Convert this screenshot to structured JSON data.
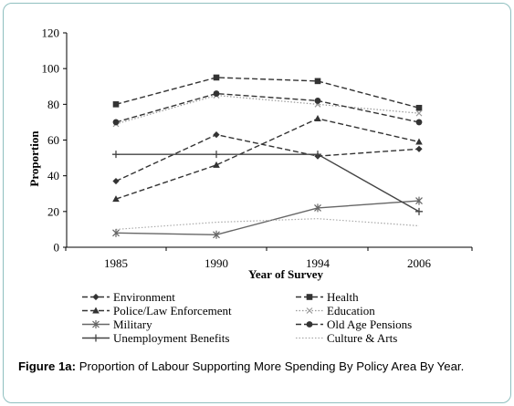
{
  "chart_data": {
    "type": "line",
    "title": "",
    "xlabel": "Year of Survey",
    "ylabel": "Proportion",
    "categories": [
      "1985",
      "1990",
      "1994",
      "2006"
    ],
    "ylim": [
      0,
      120
    ],
    "yticks": [
      "0",
      "20",
      "40",
      "60",
      "80",
      "100",
      "120"
    ],
    "grid": false,
    "legend_position": "bottom",
    "series": [
      {
        "name": "Environment",
        "values": [
          37,
          63,
          51,
          55
        ],
        "color": "#333333",
        "dash": "dashed",
        "marker": "diamond"
      },
      {
        "name": "Health",
        "values": [
          80,
          95,
          93,
          78
        ],
        "color": "#333333",
        "dash": "dashed",
        "marker": "square"
      },
      {
        "name": "Police/Law Enforcement",
        "values": [
          27,
          46,
          72,
          59
        ],
        "color": "#333333",
        "dash": "dashed",
        "marker": "triangle"
      },
      {
        "name": "Education",
        "values": [
          69,
          85,
          80,
          75
        ],
        "color": "#999999",
        "dash": "dotted",
        "marker": "x"
      },
      {
        "name": "Military",
        "values": [
          8,
          7,
          22,
          26
        ],
        "color": "#666666",
        "dash": "solid",
        "marker": "star"
      },
      {
        "name": "Old Age Pensions",
        "values": [
          70,
          86,
          82,
          70
        ],
        "color": "#333333",
        "dash": "dashed",
        "marker": "circle"
      },
      {
        "name": "Unemployment Benefits",
        "values": [
          52,
          52,
          52,
          20
        ],
        "color": "#444444",
        "dash": "solid",
        "marker": "plus"
      },
      {
        "name": "Culture & Arts",
        "values": [
          10,
          14,
          16,
          12
        ],
        "color": "#aaaaaa",
        "dash": "dotted",
        "marker": "none"
      }
    ]
  },
  "caption": {
    "label": "Figure 1a:",
    "text": "Proportion of Labour Supporting More Spending By Policy Area By Year."
  }
}
